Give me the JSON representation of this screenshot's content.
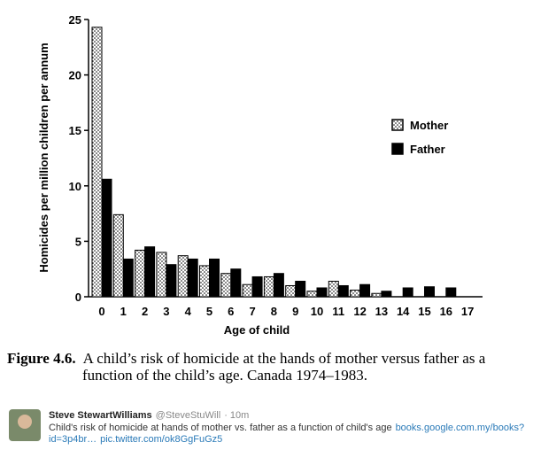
{
  "chart_data": {
    "type": "bar",
    "y_label": "Homicides per million children per annum",
    "x_label": "Age of child",
    "categories": [
      "0",
      "1",
      "2",
      "3",
      "4",
      "5",
      "6",
      "7",
      "8",
      "9",
      "10",
      "11",
      "12",
      "13",
      "14",
      "15",
      "16",
      "17"
    ],
    "series": [
      {
        "name": "Mother",
        "color": "#ffffff",
        "values": [
          24.3,
          7.4,
          4.2,
          4.0,
          3.7,
          2.8,
          2.1,
          1.1,
          1.8,
          1.0,
          0.5,
          1.4,
          0.6,
          0.3,
          0,
          0,
          0,
          0
        ]
      },
      {
        "name": "Father",
        "color": "#000000",
        "values": [
          10.6,
          3.4,
          4.5,
          2.9,
          3.4,
          3.4,
          2.5,
          1.8,
          2.1,
          1.4,
          0.8,
          1.0,
          1.1,
          0.5,
          0.8,
          0.9,
          0.8,
          0
        ]
      }
    ],
    "ylim": [
      0,
      25
    ],
    "yticks": [
      0,
      5,
      10,
      15,
      20,
      25
    ],
    "legend": "right"
  },
  "caption": {
    "label": "Figure 4.6.",
    "line1": "A child’s risk of homicide at the hands of mother versus father as a",
    "line2": "function of the child’s age. Canada 1974–1983."
  },
  "tweet": {
    "name": "Steve StewartWilliams",
    "handle": "@SteveStuWill",
    "time": "· 10m",
    "text": "Child's risk of homicide at hands of mother vs. father as a function of child's age",
    "link1": "books.google.com.my/books?",
    "link2": "id=3p4br…",
    "link3": "pic.twitter.com/ok8GgFuGz5"
  }
}
